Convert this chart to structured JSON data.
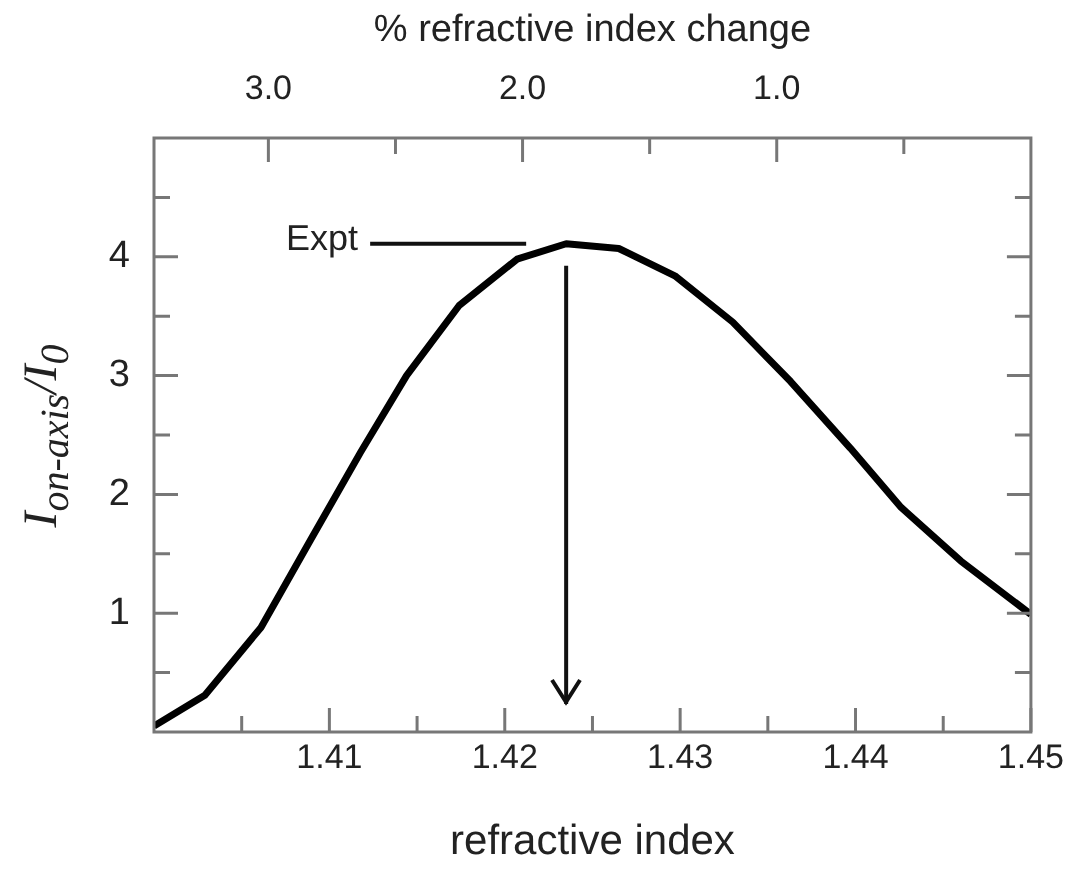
{
  "chart_data": {
    "type": "line",
    "xlabel": "refractive index",
    "x2label": "% refractive index change",
    "ylabel": "I$_{on-axis}$/I$_{0}$",
    "x": [
      1.4,
      1.4029,
      1.4061,
      1.4089,
      1.4118,
      1.4144,
      1.4174,
      1.4207,
      1.4235,
      1.4265,
      1.4297,
      1.433,
      1.4363,
      1.4397,
      1.4426,
      1.446,
      1.45
    ],
    "values": [
      0.05,
      0.31,
      0.88,
      1.61,
      2.36,
      3.0,
      3.59,
      3.98,
      4.11,
      4.07,
      3.84,
      3.45,
      2.95,
      2.39,
      1.89,
      1.44,
      0.99
    ],
    "color": "#000000",
    "marker": "none",
    "line_style": "solid",
    "grid": false,
    "legend": false,
    "xlim": [
      1.4,
      1.45
    ],
    "xticks": [
      {
        "value": 1.405,
        "label": null
      },
      1.41,
      {
        "value": 1.415,
        "label": null
      },
      1.42,
      {
        "value": 1.425,
        "label": null
      },
      1.43,
      {
        "value": 1.435,
        "label": null
      },
      1.44,
      {
        "value": 1.445,
        "label": null
      },
      1.45
    ],
    "x2lim": [
      3.45,
      0
    ],
    "x2ticks": [
      {
        "value": 3.0,
        "label": "3.0"
      },
      {
        "value": 2.5,
        "label": null
      },
      {
        "value": 2.0,
        "label": "2.0"
      },
      {
        "value": 1.5,
        "label": null
      },
      {
        "value": 1.0,
        "label": "1.0"
      },
      {
        "value": 0.5,
        "label": null
      }
    ],
    "ylim": [
      0,
      5
    ],
    "yticks": [
      {
        "value": 0.5,
        "label": null
      },
      1,
      {
        "value": 1.5,
        "label": null
      },
      2,
      {
        "value": 2.5,
        "label": null
      },
      3,
      {
        "value": 3.5,
        "label": null
      },
      4,
      {
        "value": 4.5,
        "label": null
      }
    ],
    "ref_lines": [
      {
        "axis": "x",
        "value": 1.4235,
        "label": "Expt",
        "color": "#111111"
      }
    ]
  }
}
